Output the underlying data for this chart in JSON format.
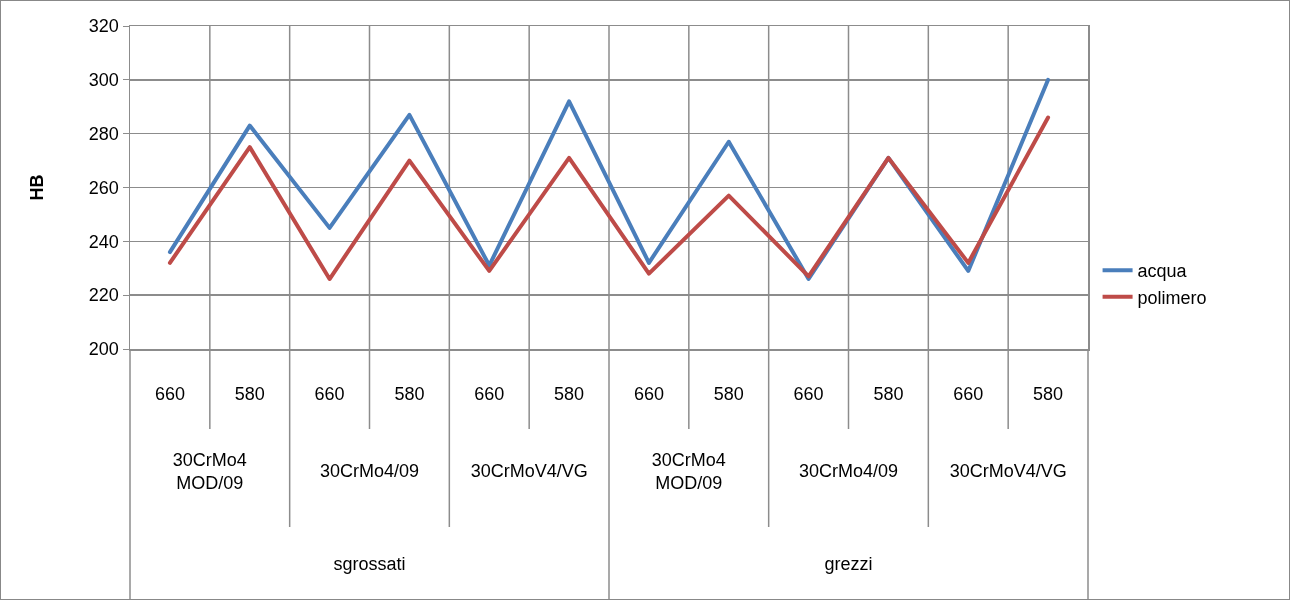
{
  "chart_data": {
    "type": "line",
    "ylabel": "HB",
    "categories": [
      "660",
      "580",
      "660",
      "580",
      "660",
      "580",
      "660",
      "580",
      "660",
      "580",
      "660",
      "580"
    ],
    "series": [
      {
        "name": "acqua",
        "color": "#4a7ebb",
        "values": [
          236,
          283,
          245,
          287,
          231,
          292,
          232,
          277,
          226,
          271,
          229,
          300
        ]
      },
      {
        "name": "polimero",
        "color": "#be4b48",
        "values": [
          232,
          275,
          226,
          270,
          229,
          271,
          228,
          257,
          227,
          271,
          232,
          286
        ]
      }
    ],
    "annotations": [
      "30CrMo4 MOD/09",
      "30CrMo4/09",
      "30CrMoV4/VG",
      "30CrMo4 MOD/09",
      "30CrMo4/09",
      "30CrMoV4/VG",
      "sgrossati",
      "grezzi"
    ],
    "ylim": [
      200,
      320
    ],
    "yticks": [
      200,
      220,
      240,
      260,
      280,
      300,
      320
    ],
    "grid": true,
    "legend": "right",
    "marker": "none",
    "line_style": "solid"
  }
}
